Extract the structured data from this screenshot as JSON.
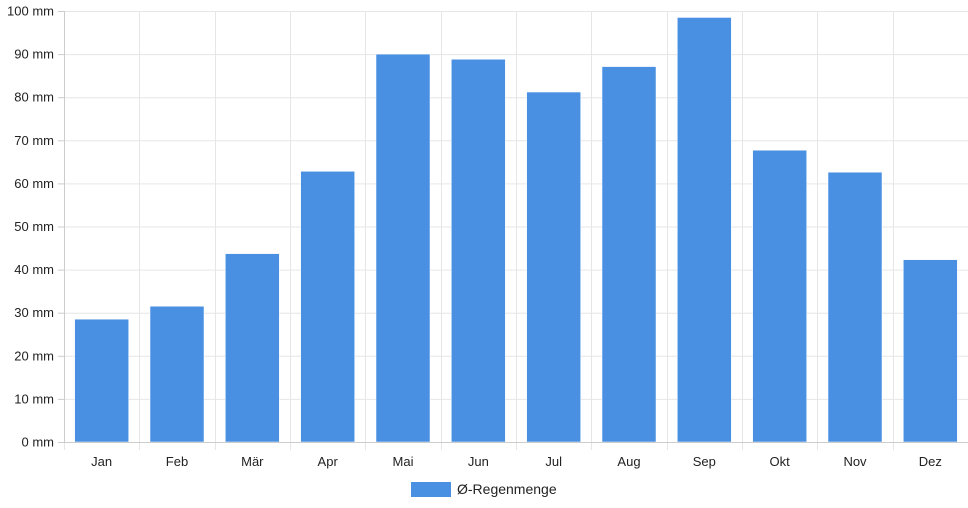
{
  "chart_data": {
    "type": "bar",
    "categories": [
      "Jan",
      "Feb",
      "Mär",
      "Apr",
      "Mai",
      "Jun",
      "Jul",
      "Aug",
      "Sep",
      "Okt",
      "Nov",
      "Dez"
    ],
    "series": [
      {
        "name": "Ø-Regenmenge",
        "values": [
          28.5,
          31.5,
          43.7,
          62.8,
          90.0,
          88.8,
          81.2,
          87.1,
          98.5,
          67.7,
          62.6,
          42.3
        ],
        "color": "#4a90e2"
      }
    ],
    "y_ticks": [
      "0 mm",
      "10 mm",
      "20 mm",
      "30 mm",
      "40 mm",
      "50 mm",
      "60 mm",
      "70 mm",
      "80 mm",
      "90 mm",
      "100 mm"
    ],
    "ylim": [
      0,
      100
    ],
    "ytick_step": 10,
    "grid": true,
    "legend_position": "bottom-center"
  }
}
